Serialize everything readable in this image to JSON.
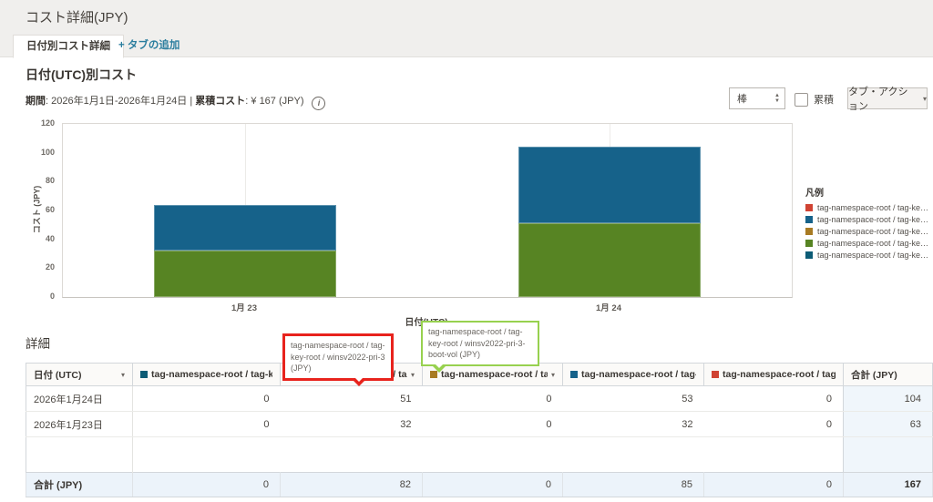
{
  "page": {
    "title": "コスト詳細(JPY)"
  },
  "tabs": {
    "active_label": "日付別コスト詳細",
    "add_label": "+ タブの追加"
  },
  "section": {
    "heading": "日付(UTC)別コスト",
    "period_label": "期間",
    "period_text": ": 2026年1月1日-2026年1月24日 | ",
    "cumulative_label": "累積コスト",
    "cumulative_text": ": ¥ 167 (JPY)"
  },
  "controls": {
    "chart_type_value": "棒",
    "cumulative_checkbox_label": "累積",
    "cumulative_checked": false,
    "tab_actions_label": "タブ・アクション"
  },
  "icons": {
    "caret_down": "▾",
    "spinner_up": "▲",
    "spinner_down": "▼",
    "info": "i"
  },
  "chart_data": {
    "type": "bar",
    "stacked": true,
    "title": "日付(UTC)別コスト",
    "xlabel": "日付(UTC)",
    "ylabel": "コスト (JPY)",
    "ylim": [
      0,
      120
    ],
    "yticks": [
      0,
      20,
      40,
      60,
      80,
      100,
      120
    ],
    "categories": [
      "1月 23",
      "1月 24"
    ],
    "series": [
      {
        "name": "tag-namespace-root / tag-ke…",
        "color": "#d04333",
        "values": [
          0,
          0
        ]
      },
      {
        "name": "tag-namespace-root / tag-ke…",
        "color": "#16628a",
        "values": [
          32,
          53
        ]
      },
      {
        "name": "tag-namespace-root / tag-ke…",
        "color": "#a87b23",
        "values": [
          0,
          0
        ]
      },
      {
        "name": "tag-namespace-root / tag-ke…",
        "color": "#578423",
        "values": [
          32,
          51
        ]
      },
      {
        "name": "tag-namespace-root / tag-ke…",
        "color": "#0d5c76",
        "values": [
          0,
          0
        ]
      }
    ],
    "bar_totals": [
      63,
      104
    ],
    "legend_title": "凡例",
    "legend_position": "right",
    "grid": "vertical-category-lines-only",
    "stack_order": "last-series-at-bottom"
  },
  "annotations": {
    "red_callout": {
      "text": "tag-namespace-root / tag-key-root / winsv2022-pri-3 (JPY)",
      "border_color": "#e8231d"
    },
    "green_callout": {
      "text": "tag-namespace-root / tag-key-root / winsv2022-pri-3-boot-vol (JPY)",
      "border_color": "#97d14f"
    }
  },
  "details": {
    "heading": "詳細",
    "columns": [
      {
        "label": "日付 (UTC)",
        "caret": true
      },
      {
        "label": "tag-namespace-root / tag-ke…",
        "swatch": "#0d5c76",
        "caret": false
      },
      {
        "label": "tag-namespace-root / tag-ke…",
        "swatch": "#578423",
        "caret": true
      },
      {
        "label": "tag-namespace-root / tag-ke…",
        "swatch": "#a87b23",
        "caret": true
      },
      {
        "label": "tag-namespace-root / tag-ke…",
        "swatch": "#16628a",
        "caret": false
      },
      {
        "label": "tag-namespace-root / tag-ke…",
        "swatch": "#d04333",
        "caret": false
      },
      {
        "label": "合計 (JPY)"
      }
    ],
    "rows": [
      {
        "date": "2026年1月24日",
        "values": [
          "0",
          "51",
          "0",
          "53",
          "0"
        ],
        "total": "104"
      },
      {
        "date": "2026年1月23日",
        "values": [
          "0",
          "32",
          "0",
          "32",
          "0"
        ],
        "total": "63"
      }
    ],
    "footer": {
      "label": "合計 (JPY)",
      "values": [
        "0",
        "82",
        "0",
        "85",
        "0"
      ],
      "total": "167"
    }
  }
}
